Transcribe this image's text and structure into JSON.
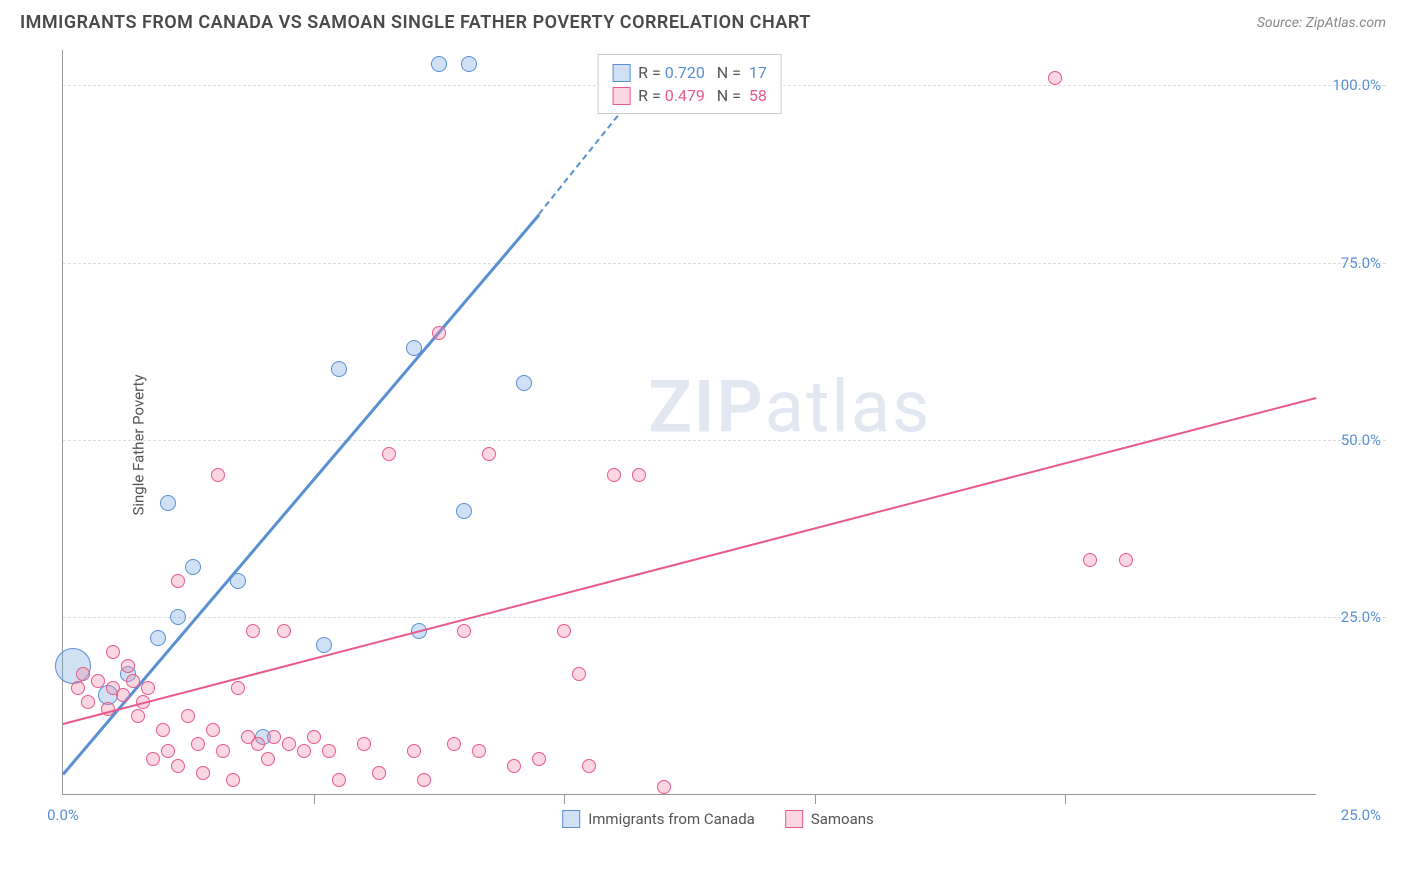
{
  "title": "IMMIGRANTS FROM CANADA VS SAMOAN SINGLE FATHER POVERTY CORRELATION CHART",
  "source_label": "Source:",
  "source_value": "ZipAtlas.com",
  "y_axis_label": "Single Father Poverty",
  "watermark": "ZIPatlas",
  "chart": {
    "type": "scatter",
    "xlim": [
      0,
      25
    ],
    "ylim": [
      0,
      105
    ],
    "x_ticks": [
      0,
      5,
      10,
      15,
      20,
      25
    ],
    "x_tick_labels": [
      "0.0%",
      "",
      "",
      "",
      "",
      "25.0%"
    ],
    "y_ticks": [
      25,
      50,
      75,
      100
    ],
    "y_tick_labels": [
      "25.0%",
      "50.0%",
      "75.0%",
      "100.0%"
    ],
    "grid_color": "#dddddd",
    "axis_color": "#999999",
    "background_color": "#ffffff",
    "series": [
      {
        "name": "Immigrants from Canada",
        "fill": "rgba(120,170,225,0.35)",
        "stroke": "#5a8fd4",
        "r_value": "0.720",
        "n_value": "17",
        "trend": {
          "x1": 0,
          "y1": 3,
          "x2": 9.5,
          "y2": 82,
          "dash_to_x": 11.2,
          "dash_to_y": 97
        },
        "points": [
          {
            "x": 0.2,
            "y": 18,
            "r": 18
          },
          {
            "x": 0.9,
            "y": 14,
            "r": 10
          },
          {
            "x": 1.3,
            "y": 17,
            "r": 8
          },
          {
            "x": 1.9,
            "y": 22,
            "r": 8
          },
          {
            "x": 2.3,
            "y": 25,
            "r": 8
          },
          {
            "x": 2.6,
            "y": 32,
            "r": 8
          },
          {
            "x": 2.1,
            "y": 41,
            "r": 8
          },
          {
            "x": 3.5,
            "y": 30,
            "r": 8
          },
          {
            "x": 4.0,
            "y": 8,
            "r": 8
          },
          {
            "x": 5.2,
            "y": 21,
            "r": 8
          },
          {
            "x": 7.1,
            "y": 23,
            "r": 8
          },
          {
            "x": 5.5,
            "y": 60,
            "r": 8
          },
          {
            "x": 7.0,
            "y": 63,
            "r": 8
          },
          {
            "x": 9.2,
            "y": 58,
            "r": 8
          },
          {
            "x": 8.0,
            "y": 40,
            "r": 8
          },
          {
            "x": 7.5,
            "y": 103,
            "r": 8
          },
          {
            "x": 8.1,
            "y": 103,
            "r": 8
          }
        ]
      },
      {
        "name": "Samoans",
        "fill": "rgba(240,140,170,0.35)",
        "stroke": "#e85a8a",
        "r_value": "0.479",
        "n_value": "58",
        "trend": {
          "x1": 0,
          "y1": 10,
          "x2": 25,
          "y2": 56
        },
        "points": [
          {
            "x": 0.3,
            "y": 15,
            "r": 7
          },
          {
            "x": 0.5,
            "y": 13,
            "r": 7
          },
          {
            "x": 0.7,
            "y": 16,
            "r": 7
          },
          {
            "x": 0.9,
            "y": 12,
            "r": 7
          },
          {
            "x": 1.0,
            "y": 15,
            "r": 7
          },
          {
            "x": 1.2,
            "y": 14,
            "r": 7
          },
          {
            "x": 1.4,
            "y": 16,
            "r": 7
          },
          {
            "x": 1.5,
            "y": 11,
            "r": 7
          },
          {
            "x": 1.7,
            "y": 15,
            "r": 7
          },
          {
            "x": 1.8,
            "y": 5,
            "r": 7
          },
          {
            "x": 2.0,
            "y": 9,
            "r": 7
          },
          {
            "x": 2.1,
            "y": 6,
            "r": 7
          },
          {
            "x": 2.3,
            "y": 4,
            "r": 7
          },
          {
            "x": 2.5,
            "y": 11,
            "r": 7
          },
          {
            "x": 2.7,
            "y": 7,
            "r": 7
          },
          {
            "x": 2.8,
            "y": 3,
            "r": 7
          },
          {
            "x": 3.0,
            "y": 9,
            "r": 7
          },
          {
            "x": 3.2,
            "y": 6,
            "r": 7
          },
          {
            "x": 3.4,
            "y": 2,
            "r": 7
          },
          {
            "x": 3.5,
            "y": 15,
            "r": 7
          },
          {
            "x": 3.7,
            "y": 8,
            "r": 7
          },
          {
            "x": 3.8,
            "y": 23,
            "r": 7
          },
          {
            "x": 3.9,
            "y": 7,
            "r": 7
          },
          {
            "x": 4.1,
            "y": 5,
            "r": 7
          },
          {
            "x": 4.2,
            "y": 8,
            "r": 7
          },
          {
            "x": 4.4,
            "y": 23,
            "r": 7
          },
          {
            "x": 4.5,
            "y": 7,
            "r": 7
          },
          {
            "x": 4.8,
            "y": 6,
            "r": 7
          },
          {
            "x": 5.0,
            "y": 8,
            "r": 7
          },
          {
            "x": 5.3,
            "y": 6,
            "r": 7
          },
          {
            "x": 5.5,
            "y": 2,
            "r": 7
          },
          {
            "x": 6.0,
            "y": 7,
            "r": 7
          },
          {
            "x": 6.3,
            "y": 3,
            "r": 7
          },
          {
            "x": 6.5,
            "y": 48,
            "r": 7
          },
          {
            "x": 7.0,
            "y": 6,
            "r": 7
          },
          {
            "x": 7.2,
            "y": 2,
            "r": 7
          },
          {
            "x": 7.5,
            "y": 65,
            "r": 7
          },
          {
            "x": 7.8,
            "y": 7,
            "r": 7
          },
          {
            "x": 8.0,
            "y": 23,
            "r": 7
          },
          {
            "x": 8.3,
            "y": 6,
            "r": 7
          },
          {
            "x": 8.5,
            "y": 48,
            "r": 7
          },
          {
            "x": 9.0,
            "y": 4,
            "r": 7
          },
          {
            "x": 9.5,
            "y": 5,
            "r": 7
          },
          {
            "x": 10.0,
            "y": 23,
            "r": 7
          },
          {
            "x": 10.3,
            "y": 17,
            "r": 7
          },
          {
            "x": 10.5,
            "y": 4,
            "r": 7
          },
          {
            "x": 11.0,
            "y": 45,
            "r": 7
          },
          {
            "x": 11.5,
            "y": 45,
            "r": 7
          },
          {
            "x": 12.0,
            "y": 1,
            "r": 7
          },
          {
            "x": 3.1,
            "y": 45,
            "r": 7
          },
          {
            "x": 2.3,
            "y": 30,
            "r": 7
          },
          {
            "x": 1.0,
            "y": 20,
            "r": 7
          },
          {
            "x": 20.5,
            "y": 33,
            "r": 7
          },
          {
            "x": 21.2,
            "y": 33,
            "r": 7
          },
          {
            "x": 19.8,
            "y": 101,
            "r": 7
          },
          {
            "x": 1.3,
            "y": 18,
            "r": 7
          },
          {
            "x": 1.6,
            "y": 13,
            "r": 7
          },
          {
            "x": 0.4,
            "y": 17,
            "r": 7
          }
        ]
      }
    ]
  },
  "legend_top": {
    "r_label": "R =",
    "n_label": "N ="
  },
  "legend_bottom": {
    "items": [
      "Immigrants from Canada",
      "Samoans"
    ]
  }
}
